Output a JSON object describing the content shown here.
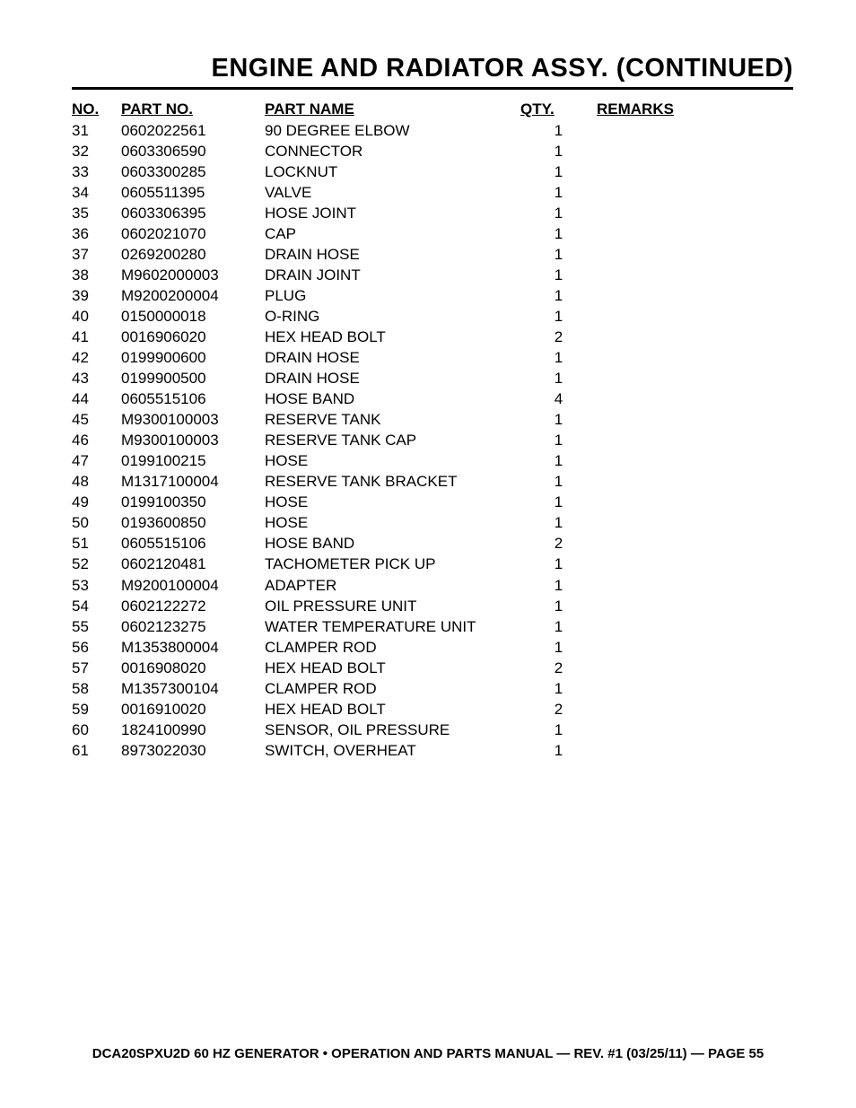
{
  "title": "ENGINE AND RADIATOR ASSY. (CONTINUED)",
  "columns": {
    "no": "NO.",
    "part_no": "PART NO.",
    "part_name": "PART NAME",
    "qty": "QTY.",
    "remarks": "REMARKS"
  },
  "rows": [
    {
      "no": "31",
      "part_no": "0602022561",
      "part_name": "90 DEGREE ELBOW",
      "qty": "1",
      "remarks": ""
    },
    {
      "no": "32",
      "part_no": "0603306590",
      "part_name": "CONNECTOR",
      "qty": "1",
      "remarks": ""
    },
    {
      "no": "33",
      "part_no": "0603300285",
      "part_name": "LOCKNUT",
      "qty": "1",
      "remarks": ""
    },
    {
      "no": "34",
      "part_no": "0605511395",
      "part_name": "VALVE",
      "qty": "1",
      "remarks": ""
    },
    {
      "no": "35",
      "part_no": "0603306395",
      "part_name": "HOSE JOINT",
      "qty": "1",
      "remarks": ""
    },
    {
      "no": "36",
      "part_no": "0602021070",
      "part_name": "CAP",
      "qty": "1",
      "remarks": ""
    },
    {
      "no": "37",
      "part_no": "0269200280",
      "part_name": "DRAIN HOSE",
      "qty": "1",
      "remarks": ""
    },
    {
      "no": "38",
      "part_no": "M9602000003",
      "part_name": "DRAIN JOINT",
      "qty": "1",
      "remarks": ""
    },
    {
      "no": "39",
      "part_no": "M9200200004",
      "part_name": "PLUG",
      "qty": "1",
      "remarks": ""
    },
    {
      "no": "40",
      "part_no": "0150000018",
      "part_name": "O-RING",
      "qty": "1",
      "remarks": ""
    },
    {
      "no": "41",
      "part_no": "0016906020",
      "part_name": "HEX HEAD BOLT",
      "qty": "2",
      "remarks": ""
    },
    {
      "no": "42",
      "part_no": "0199900600",
      "part_name": "DRAIN HOSE",
      "qty": "1",
      "remarks": ""
    },
    {
      "no": "43",
      "part_no": "0199900500",
      "part_name": "DRAIN HOSE",
      "qty": "1",
      "remarks": ""
    },
    {
      "no": "44",
      "part_no": "0605515106",
      "part_name": "HOSE BAND",
      "qty": "4",
      "remarks": ""
    },
    {
      "no": "45",
      "part_no": "M9300100003",
      "part_name": "RESERVE TANK",
      "qty": "1",
      "remarks": ""
    },
    {
      "no": "46",
      "part_no": "M9300100003",
      "part_name": "RESERVE TANK CAP",
      "qty": "1",
      "remarks": ""
    },
    {
      "no": "47",
      "part_no": "0199100215",
      "part_name": "HOSE",
      "qty": "1",
      "remarks": ""
    },
    {
      "no": "48",
      "part_no": "M1317100004",
      "part_name": "RESERVE TANK BRACKET",
      "qty": "1",
      "remarks": ""
    },
    {
      "no": "49",
      "part_no": "0199100350",
      "part_name": "HOSE",
      "qty": "1",
      "remarks": ""
    },
    {
      "no": "50",
      "part_no": "0193600850",
      "part_name": "HOSE",
      "qty": "1",
      "remarks": ""
    },
    {
      "no": "51",
      "part_no": "0605515106",
      "part_name": "HOSE BAND",
      "qty": "2",
      "remarks": ""
    },
    {
      "no": "52",
      "part_no": "0602120481",
      "part_name": "TACHOMETER PICK UP",
      "qty": "1",
      "remarks": ""
    },
    {
      "no": "53",
      "part_no": "M9200100004",
      "part_name": "ADAPTER",
      "qty": "1",
      "remarks": ""
    },
    {
      "no": "54",
      "part_no": "0602122272",
      "part_name": "OIL PRESSURE UNIT",
      "qty": "1",
      "remarks": ""
    },
    {
      "no": "55",
      "part_no": "0602123275",
      "part_name": "WATER TEMPERATURE UNIT",
      "qty": "1",
      "remarks": ""
    },
    {
      "no": "56",
      "part_no": "M1353800004",
      "part_name": "CLAMPER ROD",
      "qty": "1",
      "remarks": ""
    },
    {
      "no": "57",
      "part_no": "0016908020",
      "part_name": "HEX HEAD BOLT",
      "qty": "2",
      "remarks": ""
    },
    {
      "no": "58",
      "part_no": "M1357300104",
      "part_name": "CLAMPER ROD",
      "qty": "1",
      "remarks": ""
    },
    {
      "no": "59",
      "part_no": "0016910020",
      "part_name": "HEX HEAD BOLT",
      "qty": "2",
      "remarks": ""
    },
    {
      "no": "60",
      "part_no": "1824100990",
      "part_name": "SENSOR, OIL PRESSURE",
      "qty": "1",
      "remarks": ""
    },
    {
      "no": "61",
      "part_no": "8973022030",
      "part_name": "SWITCH, OVERHEAT",
      "qty": "1",
      "remarks": ""
    }
  ],
  "footer": "DCA20SPXU2D 60 HZ GENERATOR • OPERATION AND PARTS MANUAL — REV. #1 (03/25/11) — PAGE 55"
}
